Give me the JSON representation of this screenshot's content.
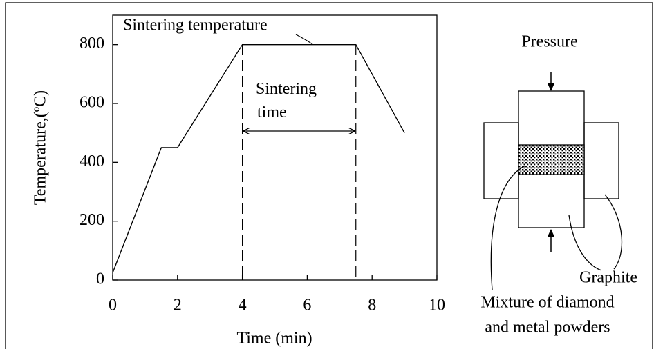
{
  "chart_data": {
    "type": "line",
    "xlabel": "Time (min)",
    "ylabel": "Temperature,(ºC)",
    "x": [
      0,
      1.5,
      2,
      4,
      7.5,
      9
    ],
    "values": [
      25,
      450,
      450,
      800,
      800,
      500
    ],
    "color": "#000000",
    "xlim": [
      0,
      10
    ],
    "ylim": [
      0,
      900
    ],
    "xticks": [
      0,
      2,
      4,
      6,
      8,
      10
    ],
    "yticks": [
      0,
      200,
      400,
      600,
      800
    ],
    "vlines": [
      4,
      7.5
    ],
    "annotations": [
      "Sintering temperature",
      "Sintering time"
    ]
  },
  "diagram": {
    "pressure": "Pressure",
    "graphite": "Graphite",
    "mixture": [
      "Mixture of diamond",
      "and metal powders"
    ]
  }
}
